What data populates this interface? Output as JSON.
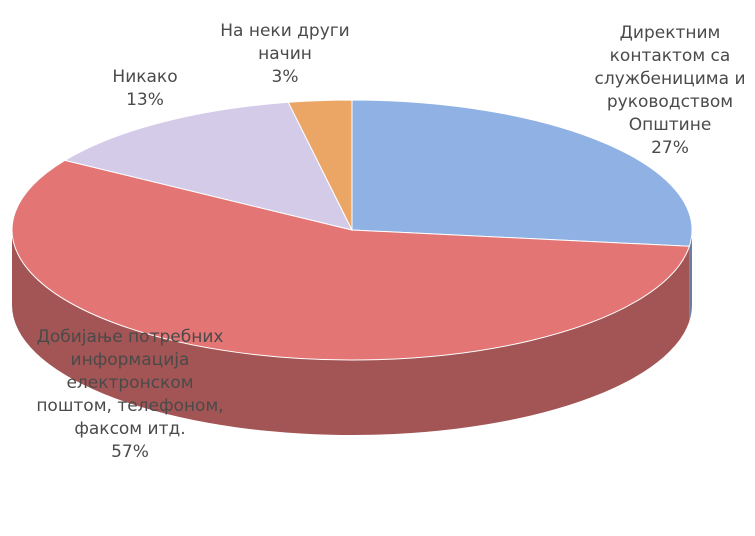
{
  "chart_data": {
    "type": "pie",
    "categories": [
      "Директним контактом са службеницима и руководством Општине",
      "Добијање потребних информација електронском поштом, телефоном, факсом итд.",
      "Никако",
      "На неки други начин"
    ],
    "values": [
      27,
      57,
      13,
      3
    ],
    "value_labels": [
      "27%",
      "57%",
      "13%",
      "3%"
    ],
    "colors": [
      "#8fb1e3",
      "#e37575",
      "#d3cbe8",
      "#eba564"
    ]
  }
}
